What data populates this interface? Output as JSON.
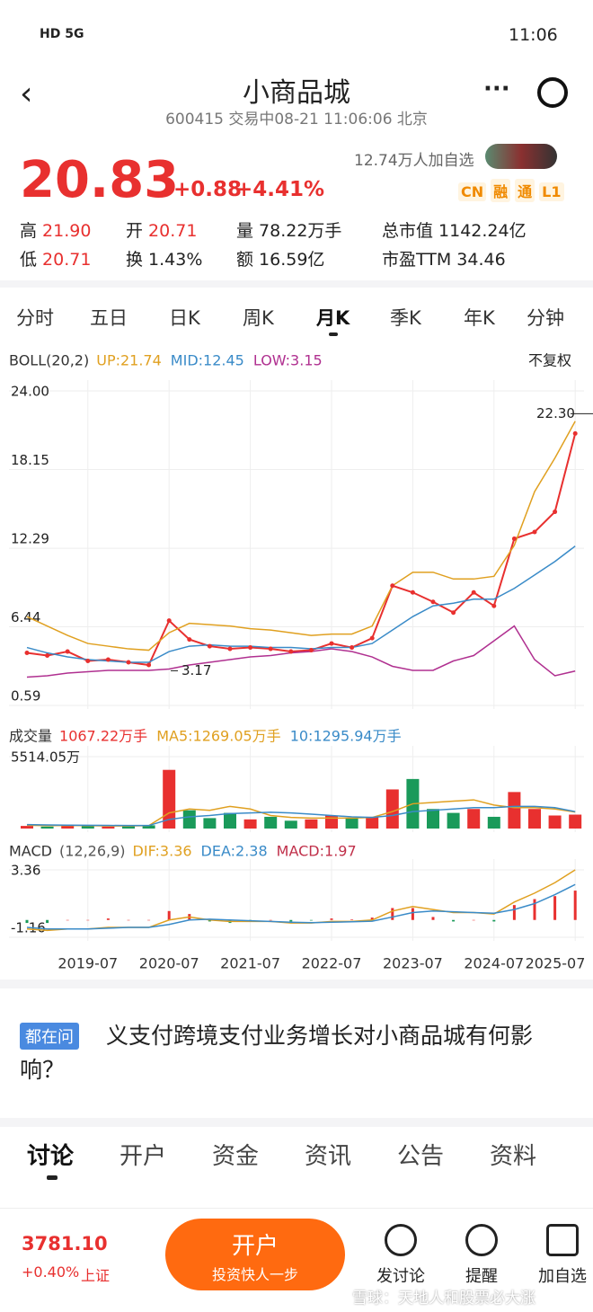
{
  "status_bar": {
    "left": "HD 5G",
    "time": "11:06"
  },
  "header": {
    "title": "小商品城",
    "subtitle": "600415 交易中08-21 11:06:06 北京"
  },
  "quote": {
    "price": "20.83",
    "change": "+0.88",
    "change_pct": "+4.41%",
    "followers": "12.74万人加自选",
    "badges": [
      "CN",
      "融",
      "通",
      "L1"
    ],
    "stats": [
      [
        "高",
        "21.90"
      ],
      [
        "开",
        "20.71"
      ],
      [
        "量",
        "78.22万手"
      ],
      [
        "总市值",
        "1142.24亿"
      ],
      [
        "低",
        "20.71"
      ],
      [
        "换",
        "1.43%"
      ],
      [
        "额",
        "16.59亿"
      ],
      [
        "市盈TTM",
        "34.46"
      ]
    ]
  },
  "period_tabs": [
    "分时",
    "五日",
    "日K",
    "周K",
    "月K",
    "季K",
    "年K",
    "分钟"
  ],
  "chart_data": [
    {
      "type": "line",
      "title": "BOLL(20,2)",
      "adjust": "不复权",
      "grid": true,
      "ylim": [
        0.59,
        24.0
      ],
      "yticks": [
        {
          "value": 24.0,
          "label": "24.00"
        },
        {
          "value": 18.15,
          "label": "18.15"
        },
        {
          "value": 12.29,
          "label": "12.29"
        },
        {
          "value": 6.44,
          "label": "6.44"
        },
        {
          "value": 0.59,
          "label": "0.59"
        }
      ],
      "series": [
        {
          "color": "#e8302f",
          "values": [
            4.5,
            4.3,
            4.6,
            3.9,
            4.0,
            3.8,
            3.6,
            6.9,
            5.5,
            5.0,
            4.8,
            4.9,
            4.8,
            4.6,
            4.7,
            5.2,
            4.9,
            5.6,
            9.5,
            9.0,
            8.3,
            7.5,
            9.0,
            8.0,
            13.0,
            13.5,
            15.0,
            20.83
          ]
        },
        {
          "name": "UP:21.74",
          "color": "#e0a020",
          "values": [
            7.2,
            6.5,
            5.8,
            5.2,
            5.0,
            4.8,
            4.7,
            6.0,
            6.7,
            6.6,
            6.5,
            6.3,
            6.2,
            6.0,
            5.8,
            5.9,
            5.9,
            6.5,
            9.5,
            10.5,
            10.5,
            10.0,
            10.0,
            10.2,
            12.5,
            16.5,
            19.0,
            21.74
          ]
        },
        {
          "name": "MID:12.45",
          "color": "#3a8bc8",
          "values": [
            4.9,
            4.5,
            4.2,
            4.0,
            3.9,
            3.8,
            3.8,
            4.6,
            5.0,
            5.1,
            5.0,
            5.0,
            4.9,
            4.9,
            4.8,
            4.9,
            4.9,
            5.2,
            6.2,
            7.2,
            8.0,
            8.2,
            8.5,
            8.5,
            9.3,
            10.3,
            11.3,
            12.45
          ]
        },
        {
          "name": "LOW:3.15",
          "color": "#b03090",
          "values": [
            2.7,
            2.8,
            3.0,
            3.1,
            3.2,
            3.2,
            3.2,
            3.3,
            3.6,
            3.8,
            4.0,
            4.2,
            4.3,
            4.5,
            4.6,
            4.8,
            4.6,
            4.2,
            3.5,
            3.2,
            3.2,
            3.9,
            4.3,
            5.4,
            6.5,
            4.0,
            2.8,
            3.15
          ]
        }
      ],
      "annotations": [
        {
          "value": 22.3,
          "label": "22.30"
        },
        {
          "value": 3.17,
          "label": "3.17"
        }
      ]
    },
    {
      "type": "bar",
      "title": "成交量",
      "grid": true,
      "ylim": [
        0,
        5514.05
      ],
      "yticks": [
        {
          "value": 5514.05,
          "label": "5514.05万"
        }
      ],
      "colors": {
        "up": "#e8302f",
        "down": "#1a9a5a"
      },
      "series": [
        {
          "name": "1067.22万手",
          "color": "#e8302f",
          "values": [
            200,
            150,
            300,
            200,
            150,
            200,
            250,
            4500,
            1400,
            800,
            1200,
            700,
            900,
            600,
            700,
            1000,
            800,
            900,
            3000,
            3800,
            1500,
            1200,
            1500,
            900,
            2800,
            1500,
            1000,
            1067.22
          ]
        },
        {
          "name": "MA5:1269.05万手",
          "color": "#e0a020",
          "values": [
            250,
            220,
            230,
            220,
            200,
            200,
            220,
            1200,
            1500,
            1400,
            1700,
            1500,
            1000,
            850,
            800,
            800,
            800,
            850,
            1300,
            1900,
            2000,
            2100,
            2200,
            1800,
            1600,
            1600,
            1500,
            1269.05
          ]
        },
        {
          "name": "10:1295.94万手",
          "color": "#3a8bc8",
          "values": [
            300,
            280,
            260,
            250,
            240,
            230,
            230,
            700,
            900,
            1000,
            1150,
            1200,
            1250,
            1200,
            1100,
            1000,
            900,
            850,
            1000,
            1300,
            1400,
            1500,
            1600,
            1600,
            1700,
            1700,
            1600,
            1295.94
          ]
        }
      ]
    },
    {
      "type": "bar",
      "title": "MACD",
      "params": "(12,26,9)",
      "grid": true,
      "ylim": [
        -1.16,
        3.36
      ],
      "yticks": [
        3.36,
        -1.16
      ],
      "colors": {
        "up": "#e8302f",
        "down": "#1a9a5a"
      },
      "categories": [
        null,
        null,
        null,
        "2019-07",
        null,
        null,
        null,
        "2020-07",
        null,
        null,
        null,
        "2021-07",
        null,
        null,
        null,
        "2022-07",
        null,
        null,
        null,
        "2023-07",
        null,
        null,
        null,
        "2024-07",
        null,
        null,
        null,
        "2025-07"
      ],
      "series": [
        {
          "name": "DIF:3.36",
          "color": "#e0a020",
          "values": [
            -0.6,
            -0.7,
            -0.6,
            -0.6,
            -0.5,
            -0.5,
            -0.5,
            0.0,
            0.2,
            0.0,
            -0.1,
            -0.1,
            -0.1,
            -0.2,
            -0.2,
            -0.1,
            -0.1,
            0.0,
            0.6,
            0.9,
            0.7,
            0.5,
            0.5,
            0.4,
            1.2,
            1.8,
            2.5,
            3.36
          ]
        },
        {
          "name": "DEA:2.38",
          "color": "#3a8bc8",
          "values": [
            -0.5,
            -0.6,
            -0.6,
            -0.6,
            -0.55,
            -0.5,
            -0.5,
            -0.3,
            0.0,
            0.05,
            0.0,
            -0.05,
            -0.1,
            -0.15,
            -0.18,
            -0.15,
            -0.12,
            -0.08,
            0.2,
            0.5,
            0.6,
            0.55,
            0.5,
            0.45,
            0.7,
            1.1,
            1.7,
            2.38
          ]
        },
        {
          "name": "MACD:1.97",
          "color": "#c0304a",
          "values": [
            -0.2,
            -0.2,
            0.0,
            0.0,
            0.1,
            0.0,
            0.0,
            0.6,
            0.4,
            -0.1,
            -0.2,
            -0.1,
            0.0,
            -0.1,
            -0.04,
            0.1,
            0.04,
            0.16,
            0.8,
            0.8,
            0.2,
            -0.1,
            0.0,
            -0.1,
            1.0,
            1.4,
            1.6,
            1.97
          ]
        }
      ]
    }
  ],
  "question": {
    "tag": "都在问",
    "text": "义支付跨境支付业务增长对小商品城有何影响？"
  },
  "section_tabs": [
    "讨论",
    "开户",
    "资金",
    "资讯",
    "公告",
    "资料"
  ],
  "bottom_bar": {
    "index_value": "3781.10",
    "index_change": "+0.40%",
    "index_name": "上证",
    "open_account": "开户",
    "open_account_sub": "投资快人一步",
    "actions": [
      "发讨论",
      "提醒",
      "加自选"
    ]
  },
  "watermark": "雪球：天地人和股票必大涨"
}
